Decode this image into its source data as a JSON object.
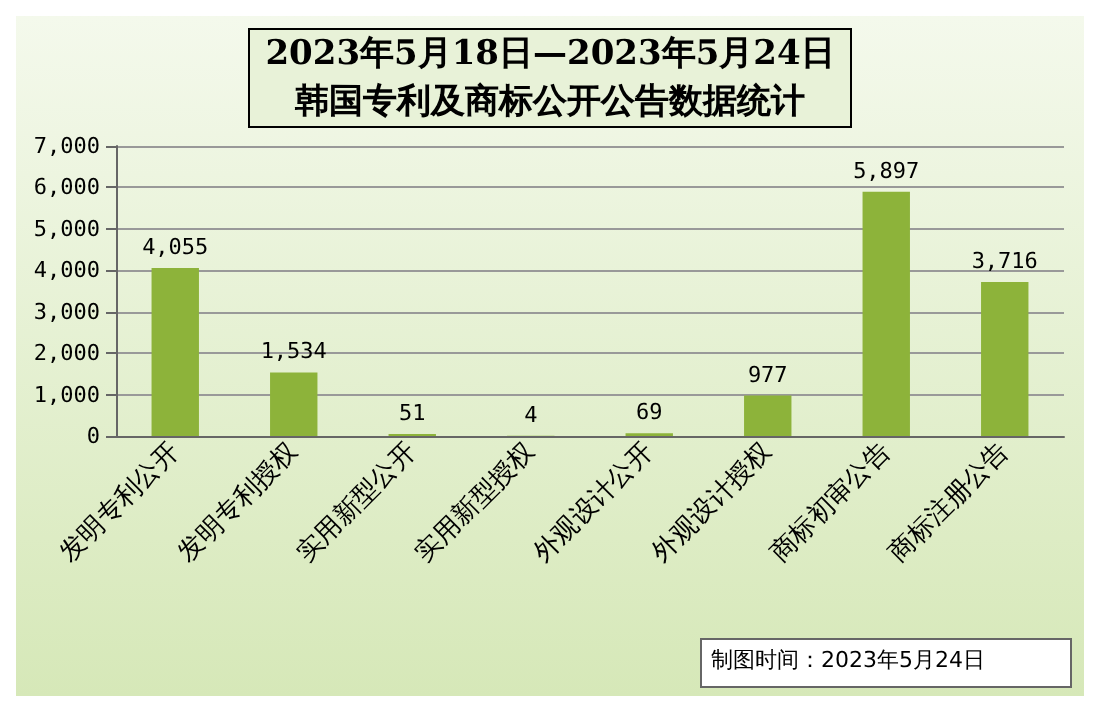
{
  "chart_data": {
    "type": "bar",
    "title": "2023年5月18日—2023年5月24日",
    "subtitle": "韩国专利及商标公开公告数据统计",
    "categories": [
      "发明专利公开",
      "发明专利授权",
      "实用新型公开",
      "实用新型授权",
      "外观设计公开",
      "外观设计授权",
      "商标初审公告",
      "商标注册公告"
    ],
    "values": [
      4055,
      1534,
      51,
      4,
      69,
      977,
      5897,
      3716
    ],
    "value_labels": [
      "4,055",
      "1,534",
      "51",
      "4",
      "69",
      "977",
      "5,897",
      "3,716"
    ],
    "color": "#8db33a",
    "ylim": [
      0,
      7000
    ],
    "yticks": [
      0,
      {
        "value": 1000,
        "label": "1,000"
      },
      {
        "value": 2000,
        "label": "2,000"
      },
      {
        "value": 3000,
        "label": "3,000"
      },
      {
        "value": 4000,
        "label": "4,000"
      },
      {
        "value": 5000,
        "label": "5,000"
      },
      {
        "value": 6000,
        "label": "6,000"
      },
      {
        "value": 7000,
        "label": "7,000"
      }
    ],
    "grid": "y",
    "annotations": [
      "制图时间：2023年5月24日"
    ]
  }
}
